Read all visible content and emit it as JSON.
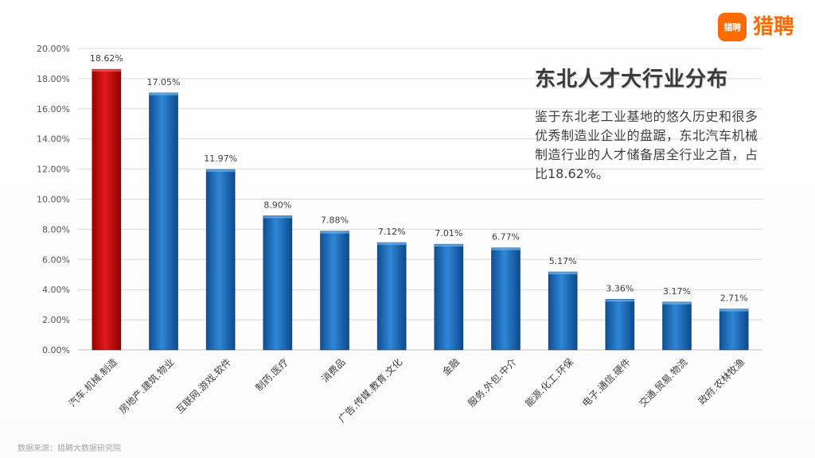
{
  "logo": {
    "mark": "猎聘",
    "text": "猎聘"
  },
  "title": "东北人才大行业分布",
  "description": "鉴于东北老工业基地的悠久历史和很多优秀制造业企业的盘踞，东北汽车机械制造行业的人才储备居全行业之首，占比18.62%。",
  "source": "数据来源：猎聘大数据研究院",
  "colors": {
    "highlight": "#c00000",
    "bar": "#1f6fbf",
    "grid": "#d9d9d9",
    "logo": "#ff6a00"
  },
  "chart_data": {
    "type": "bar",
    "title": "东北人才大行业分布",
    "xlabel": "",
    "ylabel": "",
    "ylim": [
      0,
      20
    ],
    "y_ticks": [
      "0.00%",
      "2.00%",
      "4.00%",
      "6.00%",
      "8.00%",
      "10.00%",
      "12.00%",
      "14.00%",
      "16.00%",
      "18.00%",
      "20.00%"
    ],
    "grid": true,
    "legend": "none",
    "categories": [
      "汽车.机械.制造",
      "房地产.建筑.物业",
      "互联网.游戏.软件",
      "制药.医疗",
      "消费品",
      "广告.传媒.教育.文化",
      "金融",
      "服务.外包.中介",
      "能源.化工.环保",
      "电子.通信.硬件",
      "交通.贸易.物流",
      "政府.农林牧渔"
    ],
    "values": [
      18.62,
      17.05,
      11.97,
      8.9,
      7.88,
      7.12,
      7.01,
      6.77,
      5.17,
      3.36,
      3.17,
      2.71
    ],
    "labels": [
      "18.62%",
      "17.05%",
      "11.97%",
      "8.90%",
      "7.88%",
      "7.12%",
      "7.01%",
      "6.77%",
      "5.17%",
      "3.36%",
      "3.17%",
      "2.71%"
    ],
    "highlight_index": 0
  }
}
